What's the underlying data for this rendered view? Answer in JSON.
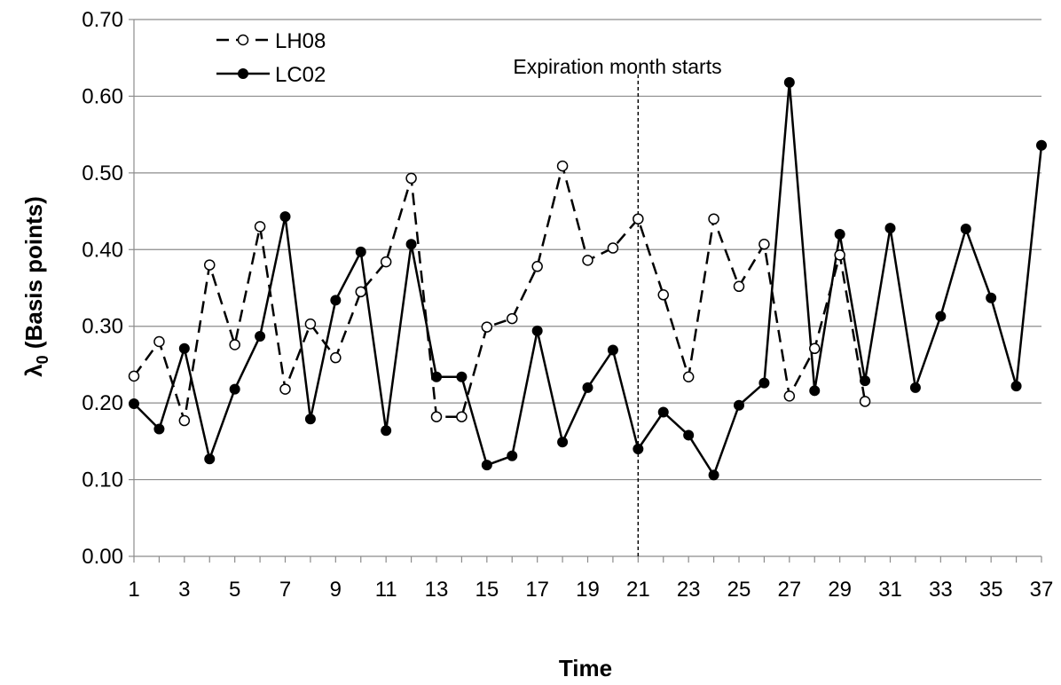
{
  "chart_data": {
    "type": "line",
    "title": "",
    "xlabel": "Time",
    "ylabel": "λ0 (Basis points)",
    "ylabel_main": "λ",
    "ylabel_sub": "0",
    "ylabel_rest": " (Basis points)",
    "xlim": [
      1,
      37
    ],
    "ylim": [
      0,
      0.7
    ],
    "grid": "horizontal",
    "legend_position": "top-left",
    "x_tick_labels": [
      "1",
      "3",
      "5",
      "7",
      "9",
      "11",
      "13",
      "15",
      "17",
      "19",
      "21",
      "23",
      "25",
      "27",
      "29",
      "31",
      "33",
      "35",
      "37"
    ],
    "y_tick_labels": [
      "0.00",
      "0.10",
      "0.20",
      "0.30",
      "0.40",
      "0.50",
      "0.60",
      "0.70"
    ],
    "annotation": {
      "text": "Expiration month starts",
      "x": 21
    },
    "series": [
      {
        "name": "LH08",
        "style": "dashed",
        "marker": "open-circle",
        "x": [
          1,
          2,
          3,
          4,
          5,
          6,
          7,
          8,
          9,
          10,
          11,
          12,
          13,
          14,
          15,
          16,
          17,
          18,
          19,
          20,
          21,
          22,
          23,
          24,
          25,
          26,
          27,
          28,
          29,
          30
        ],
        "values": [
          0.235,
          0.28,
          0.177,
          0.38,
          0.276,
          0.43,
          0.218,
          0.303,
          0.259,
          0.345,
          0.384,
          0.493,
          0.182,
          0.182,
          0.299,
          0.31,
          0.378,
          0.509,
          0.386,
          0.402,
          0.44,
          0.341,
          0.234,
          0.44,
          0.352,
          0.407,
          0.209,
          0.271,
          0.393,
          0.202
        ]
      },
      {
        "name": "LC02",
        "style": "solid",
        "marker": "filled-circle",
        "x": [
          1,
          2,
          3,
          4,
          5,
          6,
          7,
          8,
          9,
          10,
          11,
          12,
          13,
          14,
          15,
          16,
          17,
          18,
          19,
          20,
          21,
          22,
          23,
          24,
          25,
          26,
          27,
          28,
          29,
          30,
          31,
          32,
          33,
          34,
          35,
          36,
          37
        ],
        "values": [
          0.199,
          0.166,
          0.271,
          0.127,
          0.218,
          0.287,
          0.443,
          0.179,
          0.334,
          0.397,
          0.164,
          0.407,
          0.234,
          0.234,
          0.119,
          0.131,
          0.294,
          0.149,
          0.22,
          0.269,
          0.14,
          0.188,
          0.158,
          0.106,
          0.197,
          0.226,
          0.618,
          0.216,
          0.42,
          0.229,
          0.428,
          0.22,
          0.313,
          0.427,
          0.337,
          0.222,
          0.536
        ]
      }
    ]
  }
}
